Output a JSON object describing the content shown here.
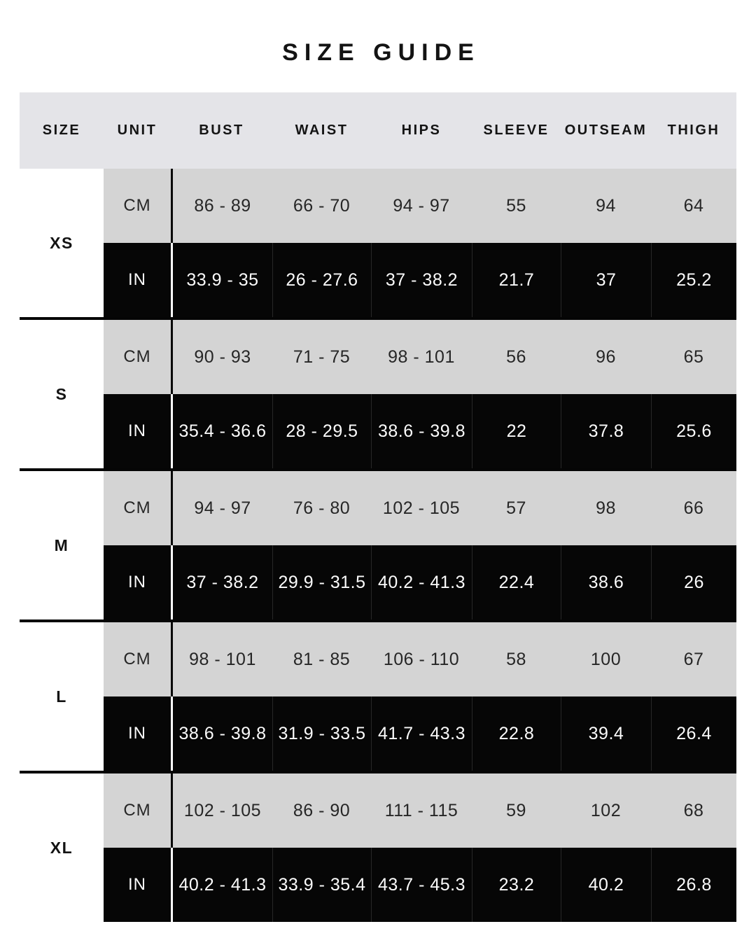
{
  "page": {
    "title": "SIZE GUIDE"
  },
  "chart_data": {
    "type": "table",
    "title": "SIZE GUIDE",
    "columns": [
      "SIZE",
      "UNIT",
      "BUST",
      "WAIST",
      "HIPS",
      "SLEEVE",
      "OUTSEAM",
      "THIGH"
    ],
    "unit_labels": {
      "cm": "CM",
      "in": "IN"
    },
    "rows": [
      {
        "size": "XS",
        "cm": [
          "86 - 89",
          "66 - 70",
          "94 - 97",
          "55",
          "94",
          "64"
        ],
        "in": [
          "33.9 - 35",
          "26 - 27.6",
          "37 - 38.2",
          "21.7",
          "37",
          "25.2"
        ]
      },
      {
        "size": "S",
        "cm": [
          "90 - 93",
          "71 - 75",
          "98 - 101",
          "56",
          "96",
          "65"
        ],
        "in": [
          "35.4 - 36.6",
          "28 - 29.5",
          "38.6 - 39.8",
          "22",
          "37.8",
          "25.6"
        ]
      },
      {
        "size": "M",
        "cm": [
          "94 - 97",
          "76 - 80",
          "102 - 105",
          "57",
          "98",
          "66"
        ],
        "in": [
          "37 - 38.2",
          "29.9 - 31.5",
          "40.2 - 41.3",
          "22.4",
          "38.6",
          "26"
        ]
      },
      {
        "size": "L",
        "cm": [
          "98 - 101",
          "81 - 85",
          "106 - 110",
          "58",
          "100",
          "67"
        ],
        "in": [
          "38.6 - 39.8",
          "31.9 - 33.5",
          "41.7 - 43.3",
          "22.8",
          "39.4",
          "26.4"
        ]
      },
      {
        "size": "XL",
        "cm": [
          "102 - 105",
          "86 - 90",
          "111 - 115",
          "59",
          "102",
          "68"
        ],
        "in": [
          "40.2 - 41.3",
          "33.9 - 35.4",
          "43.7 - 45.3",
          "23.2",
          "40.2",
          "26.8"
        ]
      }
    ],
    "layout": {
      "grid": "off",
      "row_shading": "CM rows light gray, IN rows black with white text",
      "group_separator": "thick black horizontal rule between sizes",
      "unit_divider": "vertical rule after UNIT column: black on gray rows, white on black rows"
    },
    "colors": {
      "page_bg": "#ffffff",
      "header_bg": "#e4e4e8",
      "cm_row_bg": "#d4d4d4",
      "in_row_bg": "#060606",
      "text_dark": "#141414",
      "text_light": "#fbfbfb"
    }
  }
}
